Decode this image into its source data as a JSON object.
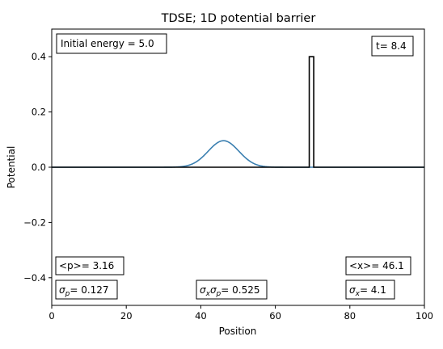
{
  "chart_data": {
    "type": "line",
    "title": "TDSE; 1D potential barrier",
    "xlabel": "Position",
    "ylabel": "Potential",
    "xlim": [
      0,
      100
    ],
    "ylim": [
      -0.5,
      0.5
    ],
    "xticks": [
      0,
      20,
      40,
      60,
      80,
      100
    ],
    "yticks": [
      -0.4,
      -0.2,
      0.0,
      0.2,
      0.4
    ],
    "xtick_labels": [
      "0",
      "20",
      "40",
      "60",
      "80",
      "100"
    ],
    "ytick_labels": [
      "−0.4",
      "−0.2",
      "0.0",
      "0.2",
      "0.4"
    ],
    "grid": false,
    "series": [
      {
        "kind": "gaussian",
        "center": 46.1,
        "peak": 0.096,
        "sigma": 4.1,
        "color": "#3a7fb0"
      },
      {
        "kind": "step",
        "color": "#000000",
        "x": [
          0,
          69.1,
          69.1,
          70.3,
          70.3,
          100
        ],
        "y": [
          0,
          0,
          0.4,
          0.4,
          0,
          0
        ]
      }
    ],
    "annotations": {
      "energy": "Initial energy = 5.0",
      "time": "t= 8.4",
      "p_mean": "<p>= 3.16",
      "x_mean": "<x>= 46.1",
      "sigma_p_value": "= 0.127",
      "sigma_xp_value": "= 0.525",
      "sigma_x_value": "= 4.1"
    },
    "colors": {
      "wave": "#3a7fb0",
      "barrier": "#000000"
    }
  }
}
